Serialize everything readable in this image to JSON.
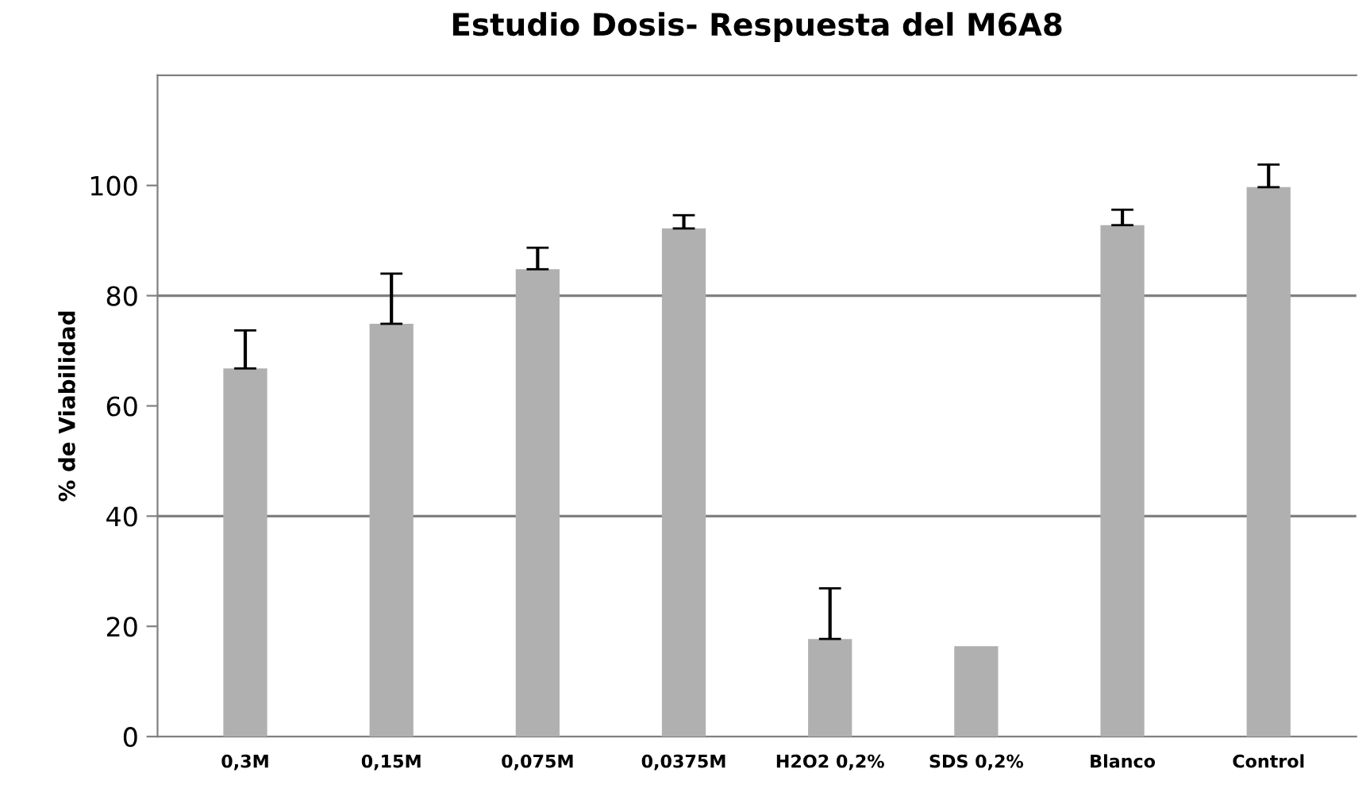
{
  "chart_data": {
    "type": "bar",
    "title": "Estudio Dosis- Respuesta del M6A8",
    "ylabel": "% de Viabilidad",
    "categories": [
      "0,3M",
      "0,15M",
      "0,075M",
      "0,0375M",
      "H2O2 0,2%",
      "SDS 0,2%",
      "Blanco",
      "Control"
    ],
    "values": [
      66.8,
      74.9,
      84.8,
      92.2,
      17.7,
      16.4,
      92.8,
      99.7
    ],
    "errors": [
      [
        66.8,
        73.7
      ],
      [
        74.9,
        84.0
      ],
      [
        84.8,
        88.7
      ],
      [
        92.2,
        94.6
      ],
      [
        17.7,
        26.9
      ],
      null,
      [
        92.8,
        95.6
      ],
      [
        99.7,
        103.8
      ]
    ],
    "color": "#b0b0b0",
    "ylim": [
      0,
      120
    ],
    "yticks": [
      0,
      20,
      40,
      60,
      80,
      100
    ],
    "ref_lines": [
      {
        "axis": "y",
        "value": 40,
        "color": "#808080"
      },
      {
        "axis": "y",
        "value": 80,
        "color": "#808080"
      }
    ],
    "grid": false
  }
}
